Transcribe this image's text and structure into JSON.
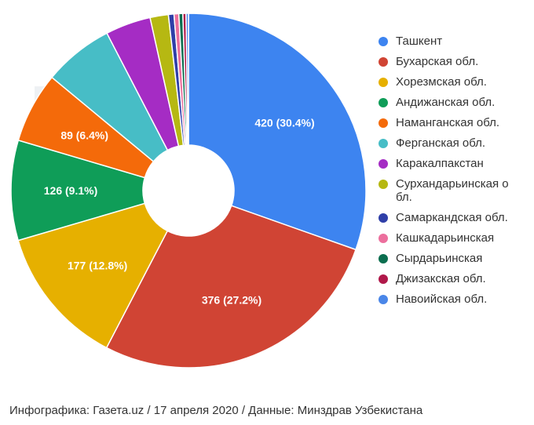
{
  "watermark": "газета.uz",
  "footer": "Инфографика: Газета.uz  /  17 апреля 2020  / Данные: Минздрав Узбекистана",
  "chart_data": {
    "type": "pie",
    "donut": true,
    "legend_position": "right",
    "series": [
      {
        "name": "Ташкент",
        "value": 420,
        "label": "420 (30.4%)",
        "color": "#3d84f0"
      },
      {
        "name": "Бухарская обл.",
        "value": 376,
        "label": "376 (27.2%)",
        "color": "#d04434"
      },
      {
        "name": "Хорезмская обл.",
        "value": 177,
        "label": "177 (12.8%)",
        "color": "#e6b000"
      },
      {
        "name": "Андижанская обл.",
        "value": 126,
        "label": "126 (9.1%)",
        "color": "#0f9d58"
      },
      {
        "name": "Наманганская обл.",
        "value": 89,
        "label": "89 (6.4%)",
        "color": "#f46a0a"
      },
      {
        "name": "Ферганская обл.",
        "value": 88,
        "label": "",
        "color": "#47bdc6"
      },
      {
        "name": "Каракалпакстан",
        "value": 57,
        "label": "",
        "color": "#a52cc4"
      },
      {
        "name": "Сурхандарьинская обл.",
        "value": 23,
        "label": "",
        "color": "#b6b812"
      },
      {
        "name": "Самаркандская обл.",
        "value": 7,
        "label": "",
        "color": "#2f3fa8"
      },
      {
        "name": "Кашкадарьинская",
        "value": 6,
        "label": "",
        "color": "#ec6f9d"
      },
      {
        "name": "Сырдарьинская",
        "value": 5,
        "label": "",
        "color": "#0b6e4f"
      },
      {
        "name": "Джизакская обл.",
        "value": 4,
        "label": "",
        "color": "#b0184a"
      },
      {
        "name": "Навоийская обл.",
        "value": 3,
        "label": "",
        "color": "#4a86e8"
      }
    ]
  }
}
